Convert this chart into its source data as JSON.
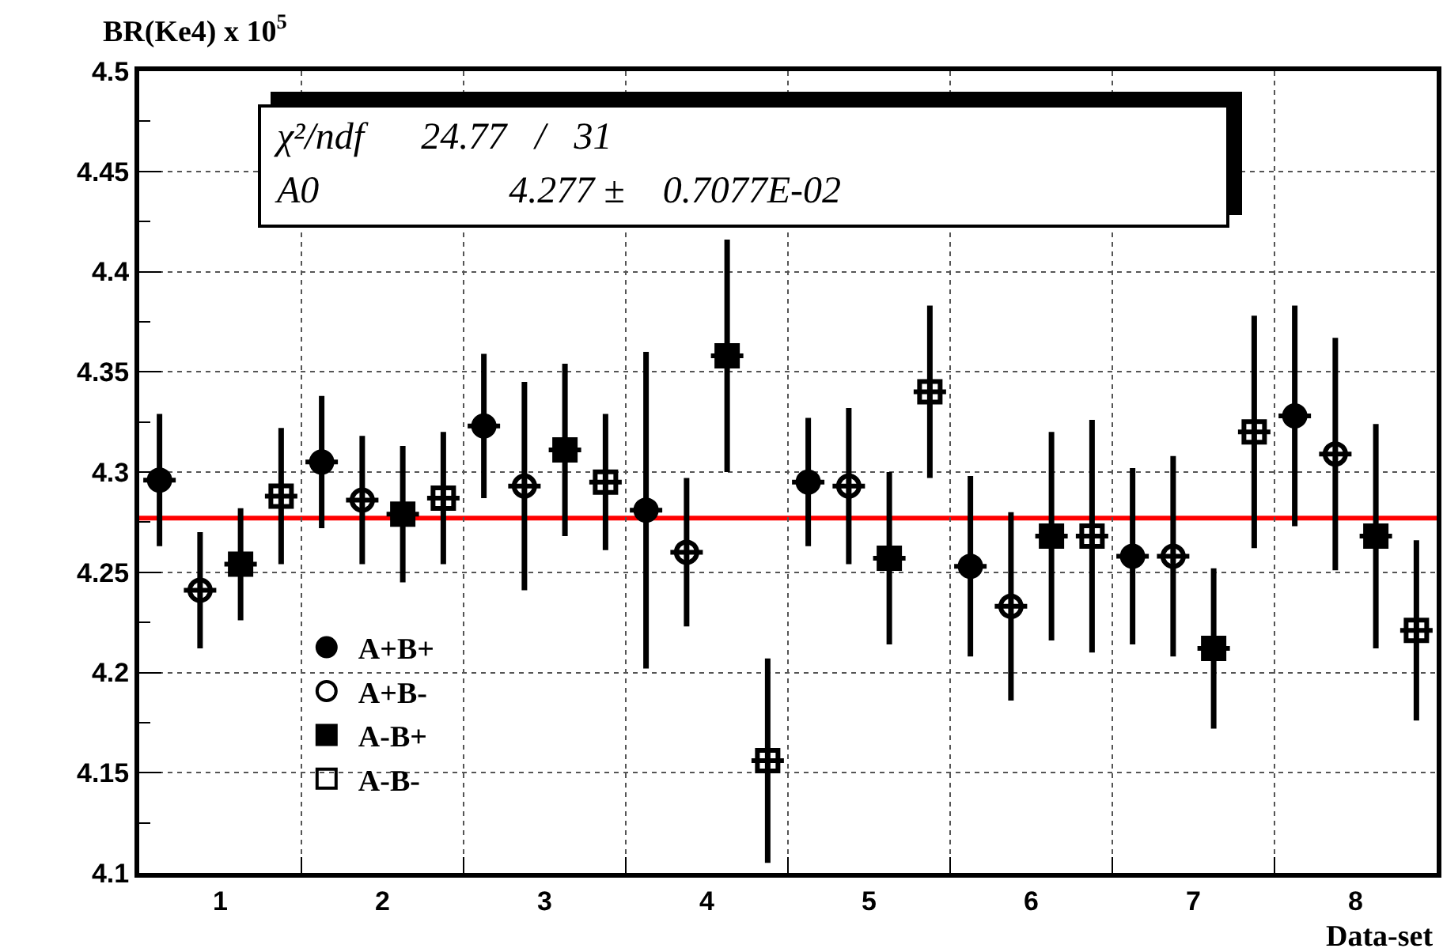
{
  "chart_data": {
    "type": "scatter",
    "ylabel": "BR(Ke4) x 10$^{5}$",
    "xlabel": "Data-set",
    "xlim": [
      0.5,
      8.5
    ],
    "xticks": [
      1,
      2,
      3,
      4,
      5,
      6,
      7,
      8,
      {
        "value": 1.5,
        "label": null
      },
      {
        "value": 2.5,
        "label": null
      },
      {
        "value": 3.5,
        "label": null
      },
      {
        "value": 4.5,
        "label": null
      },
      {
        "value": 5.5,
        "label": null
      },
      {
        "value": 6.5,
        "label": null
      },
      {
        "value": 7.5,
        "label": null
      }
    ],
    "ylim": [
      4.1,
      4.5
    ],
    "yticks": [
      4.1,
      4.15,
      4.2,
      4.25,
      4.3,
      4.35,
      4.4,
      4.45,
      4.5,
      {
        "value": 4.125,
        "label": null
      },
      {
        "value": 4.175,
        "label": null
      },
      {
        "value": 4.225,
        "label": null
      },
      {
        "value": 4.275,
        "label": null
      },
      {
        "value": 4.325,
        "label": null
      },
      {
        "value": 4.375,
        "label": null
      },
      {
        "value": 4.425,
        "label": null
      },
      {
        "value": 4.475,
        "label": null
      }
    ],
    "grid": true,
    "legend": "bottom left",
    "series": [
      {
        "name": "A+B+",
        "color": "#000000",
        "marker": "circle",
        "x": [
          0.625,
          1.625,
          2.625,
          3.625,
          4.625,
          5.625,
          6.625,
          7.625
        ],
        "values": [
          4.296,
          4.305,
          4.323,
          4.281,
          4.295,
          4.253,
          4.258,
          4.328
        ],
        "errors": [
          0.033,
          0.033,
          0.036,
          0.079,
          0.032,
          0.045,
          0.044,
          0.055
        ],
        "xerrors": [
          0.1,
          0.1,
          0.1,
          0.1,
          0.1,
          0.1,
          0.1,
          0.1
        ]
      },
      {
        "name": "A+B-",
        "color": "#000000",
        "marker": "circle",
        "x": [
          0.875,
          1.875,
          2.875,
          3.875,
          4.875,
          5.875,
          6.875,
          7.875
        ],
        "values": [
          4.241,
          4.286,
          4.293,
          4.26,
          4.293,
          4.233,
          4.258,
          4.309
        ],
        "errors": [
          0.029,
          0.032,
          0.052,
          0.037,
          0.039,
          0.047,
          0.05,
          0.058
        ],
        "xerrors": [
          0.1,
          0.1,
          0.1,
          0.1,
          0.1,
          0.1,
          0.1,
          0.1
        ]
      },
      {
        "name": "A-B+",
        "color": "#000000",
        "marker": "square",
        "x": [
          1.125,
          2.125,
          3.125,
          4.125,
          5.125,
          6.125,
          7.125,
          8.125
        ],
        "values": [
          4.254,
          4.279,
          4.311,
          4.358,
          4.257,
          4.268,
          4.212,
          4.268
        ],
        "errors": [
          0.028,
          0.034,
          0.043,
          0.058,
          0.043,
          0.052,
          0.04,
          0.056
        ],
        "xerrors": [
          0.1,
          0.1,
          0.1,
          0.1,
          0.1,
          0.1,
          0.1,
          0.1
        ]
      },
      {
        "name": "A-B-",
        "color": "#000000",
        "marker": "square",
        "x": [
          1.375,
          2.375,
          3.375,
          4.375,
          5.375,
          6.375,
          7.375,
          8.375
        ],
        "values": [
          4.288,
          4.287,
          4.295,
          4.156,
          4.34,
          4.268,
          4.32,
          4.221
        ],
        "errors": [
          0.034,
          0.033,
          0.034,
          0.051,
          0.043,
          0.058,
          0.058,
          0.045
        ],
        "xerrors": [
          0.1,
          0.1,
          0.1,
          0.1,
          0.1,
          0.1,
          0.1,
          0.1
        ]
      }
    ],
    "ref_lines": [
      {
        "axis": "y",
        "value": 4.277,
        "color": "#ff0000",
        "line_style": "solid"
      }
    ],
    "annotations": [
      "χ²/ndf      24.77   /   31",
      "A0                    4.277 ±    0.7077E-02"
    ]
  }
}
